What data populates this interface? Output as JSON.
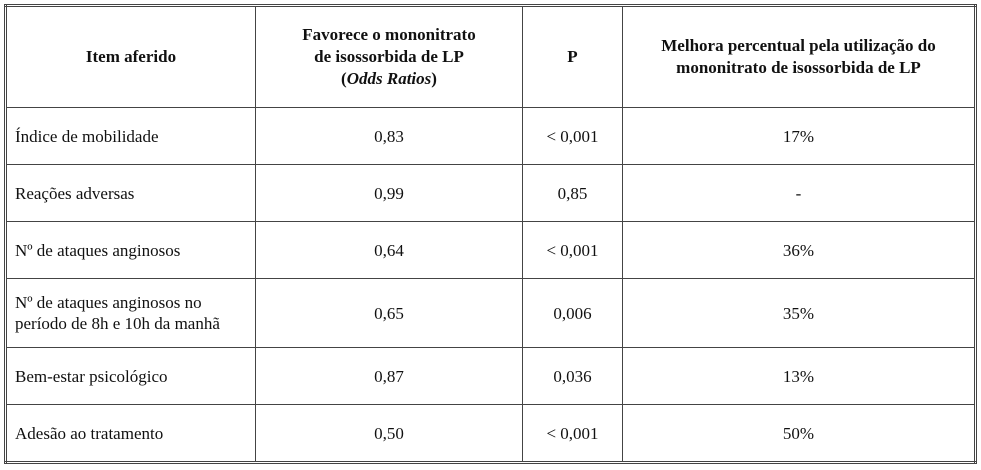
{
  "table": {
    "headers": [
      [
        "Item aferido"
      ],
      [
        "Favorece o mononitrato",
        "de isossorbida de LP",
        "(",
        "Odds Ratios",
        ")"
      ],
      [
        "P"
      ],
      [
        "Melhora percentual pela utilização do",
        "mononitrato de isossorbida de LP"
      ]
    ],
    "rows": [
      [
        "Índice de mobilidade",
        "0,83",
        "< 0,001",
        "17%"
      ],
      [
        "Reações adversas",
        "0,99",
        "0,85",
        "-"
      ],
      [
        "Nº de ataques anginosos",
        "0,64",
        "< 0,001",
        "36%"
      ],
      [
        "Nº de ataques anginosos no período de 8h e 10h da manhã",
        "0,65",
        "0,006",
        "35%"
      ],
      [
        "Bem-estar psicológico",
        "0,87",
        "0,036",
        "13%"
      ],
      [
        "Adesão ao tratamento",
        "0,50",
        "< 0,001",
        "50%"
      ]
    ]
  }
}
